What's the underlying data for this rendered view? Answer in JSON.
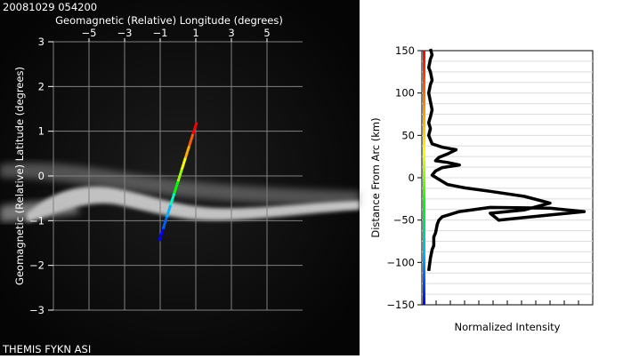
{
  "header": {
    "timestamp": "20081029 054200"
  },
  "footer": {
    "caption": "THEMIS FYKN ASI"
  },
  "chart_data": [
    {
      "type": "image",
      "xlabel": "Geomagnetic (Relative) Longitude (degrees)",
      "ylabel": "Geomagnetic (Relative) Latitude (degrees)",
      "xlim": [
        -7,
        7
      ],
      "ylim": [
        -3,
        3
      ],
      "x_ticks": [
        -5,
        -3,
        -1,
        1,
        3,
        5
      ],
      "y_ticks": [
        3,
        2,
        1,
        0,
        -1,
        -2,
        -3
      ],
      "grid": true,
      "scan_line": {
        "x": [
          -1.05,
          1.05
        ],
        "y": [
          -1.45,
          1.2
        ]
      },
      "colors": {
        "background": "#000000",
        "grid": "#808080",
        "text": "#ffffff"
      }
    },
    {
      "type": "line",
      "xlabel": "Normalized Intensity",
      "ylabel": "Distance From Arc (km)",
      "ylim": [
        -150,
        150
      ],
      "xlim": [
        0,
        1
      ],
      "y_ticks": [
        150,
        100,
        50,
        0,
        -50,
        -100,
        -150
      ],
      "grid": true,
      "series": [
        {
          "x": [
            0.05,
            0.06,
            0.05,
            0.04,
            0.05,
            0.06,
            0.05,
            0.04,
            0.05,
            0.06,
            0.05,
            0.04,
            0.05,
            0.04,
            0.05,
            0.06,
            0.12,
            0.2,
            0.15,
            0.1,
            0.08,
            0.15,
            0.22,
            0.12,
            0.08,
            0.06,
            0.1,
            0.15,
            0.25,
            0.4,
            0.6,
            0.75,
            0.6,
            0.4,
            0.45,
            0.55,
            0.75,
            0.95,
            0.75,
            0.4,
            0.22,
            0.12,
            0.1,
            0.09,
            0.08,
            0.07,
            0.07,
            0.06,
            0.05,
            0.04
          ],
          "y": [
            152,
            145,
            140,
            130,
            125,
            115,
            110,
            100,
            90,
            80,
            72,
            65,
            58,
            50,
            45,
            40,
            36,
            33,
            28,
            24,
            20,
            18,
            15,
            12,
            8,
            3,
            -2,
            -8,
            -12,
            -16,
            -22,
            -30,
            -38,
            -42,
            -50,
            -48,
            -44,
            -40,
            -36,
            -35,
            -40,
            -46,
            -50,
            -55,
            -65,
            -70,
            -80,
            -85,
            -95,
            -110
          ]
        }
      ],
      "colors": {
        "curve": "#000000",
        "gridline": "#dcdcdc"
      }
    }
  ]
}
